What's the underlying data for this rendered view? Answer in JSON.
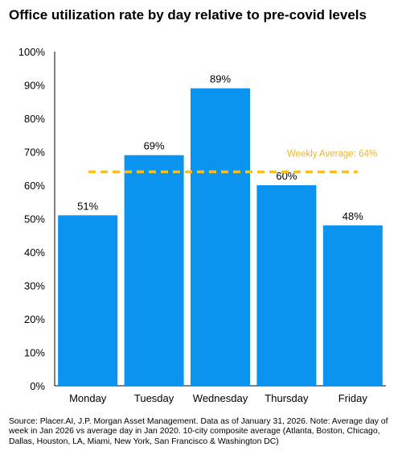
{
  "chart_data": {
    "type": "bar",
    "title": "Office utilization rate by day relative to pre-covid levels",
    "categories": [
      "Monday",
      "Tuesday",
      "Wednesday",
      "Thursday",
      "Friday"
    ],
    "values": [
      51,
      69,
      89,
      60,
      48
    ],
    "value_labels": [
      "51%",
      "69%",
      "89%",
      "60%",
      "48%"
    ],
    "ylim": [
      0,
      100
    ],
    "yticks": [
      0,
      10,
      20,
      30,
      40,
      50,
      60,
      70,
      80,
      90,
      100
    ],
    "ytick_labels": [
      "0%",
      "10%",
      "20%",
      "30%",
      "40%",
      "50%",
      "60%",
      "70%",
      "80%",
      "90%",
      "100%"
    ],
    "grid": false,
    "xlabel": "",
    "ylabel": "",
    "reference_line": {
      "label": "Weekly Average: 64%",
      "value": 64,
      "style": "dashed"
    },
    "colors": {
      "bar": "#0a93ef",
      "average_line": "#f5c02a",
      "average_label": "#f2b51c",
      "axis": "#000000"
    }
  },
  "source_note": "Source: Placer.AI, J.P. Morgan Asset Management. Data as of January 31, 2026. Note: Average day of week in Jan 2026 vs average day in Jan 2020. 10-city composite average (Atlanta, Boston, Chicago, Dallas, Houston, LA, Miami, New York, San Francisco & Washington DC)"
}
